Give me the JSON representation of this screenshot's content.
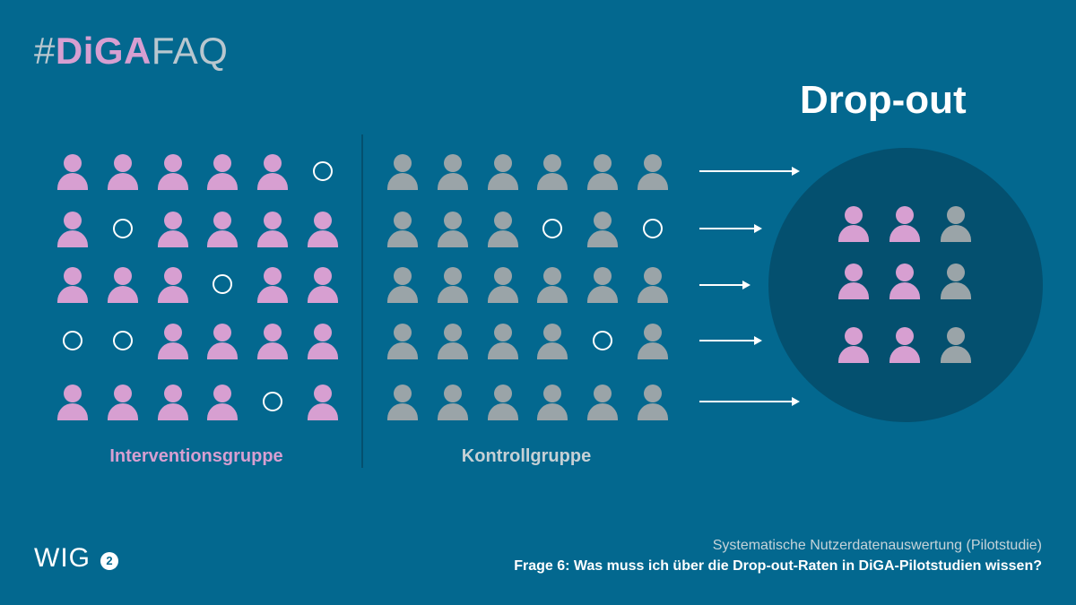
{
  "header": {
    "hashtag_hash": "#",
    "hashtag_diga": "DiGA",
    "hashtag_faq": "FAQ"
  },
  "title": "Drop-out",
  "groups": {
    "intervention": {
      "label": "Interventionsgruppe",
      "rows": [
        [
          "person",
          "person",
          "person",
          "person",
          "person",
          "empty"
        ],
        [
          "person",
          "empty",
          "person",
          "person",
          "person",
          "person"
        ],
        [
          "person",
          "person",
          "person",
          "empty",
          "person",
          "person"
        ],
        [
          "empty",
          "empty",
          "person",
          "person",
          "person",
          "person"
        ],
        [
          "person",
          "person",
          "person",
          "person",
          "empty",
          "person"
        ]
      ]
    },
    "control": {
      "label": "Kontrollgruppe",
      "rows": [
        [
          "person",
          "person",
          "person",
          "person",
          "person",
          "person"
        ],
        [
          "person",
          "person",
          "person",
          "empty",
          "person",
          "empty"
        ],
        [
          "person",
          "person",
          "person",
          "person",
          "person",
          "person"
        ],
        [
          "person",
          "person",
          "person",
          "person",
          "empty",
          "person"
        ],
        [
          "person",
          "person",
          "person",
          "person",
          "person",
          "person"
        ]
      ]
    }
  },
  "dropout": {
    "rows": [
      [
        "pink",
        "pink",
        "gray"
      ],
      [
        "pink",
        "pink",
        "gray"
      ],
      [
        "pink",
        "pink",
        "gray"
      ]
    ]
  },
  "colors": {
    "background": "#03688f",
    "intervention": "#d79fd1",
    "control": "#9aa4a8",
    "circle": "#04506f"
  },
  "footer": {
    "logo_text": "WIG",
    "logo_badge": "2",
    "subtitle": "Systematische Nutzerdatenauswertung (Pilotstudie)",
    "question": "Frage 6: Was muss ich über die Drop-out-Raten in DiGA-Pilotstudien wissen?"
  }
}
